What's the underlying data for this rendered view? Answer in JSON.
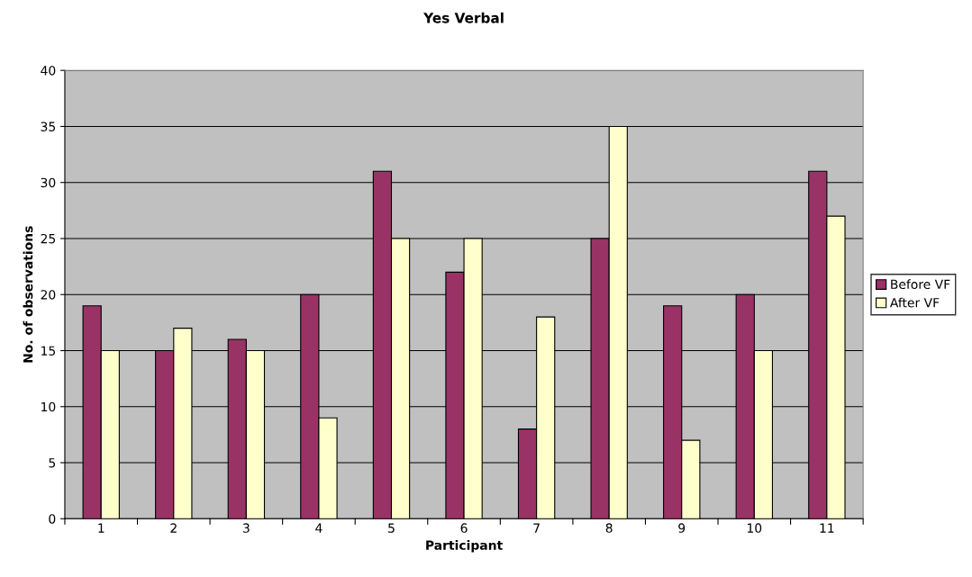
{
  "chart_data": {
    "type": "bar",
    "title": "Yes Verbal",
    "xlabel": "Participant",
    "ylabel": "No. of observations",
    "categories": [
      "1",
      "2",
      "3",
      "4",
      "5",
      "6",
      "7",
      "8",
      "9",
      "10",
      "11"
    ],
    "series": [
      {
        "name": "Before VF",
        "color": "#993366",
        "values": [
          19,
          15,
          16,
          20,
          31,
          22,
          8,
          25,
          19,
          20,
          31
        ]
      },
      {
        "name": "After VF",
        "color": "#ffffcc",
        "values": [
          15,
          17,
          15,
          9,
          25,
          25,
          18,
          35,
          7,
          15,
          27
        ]
      }
    ],
    "ylim": [
      0,
      40
    ],
    "yticks": [
      0,
      5,
      10,
      15,
      20,
      25,
      30,
      35,
      40
    ],
    "grid": "y",
    "legend": "right"
  }
}
